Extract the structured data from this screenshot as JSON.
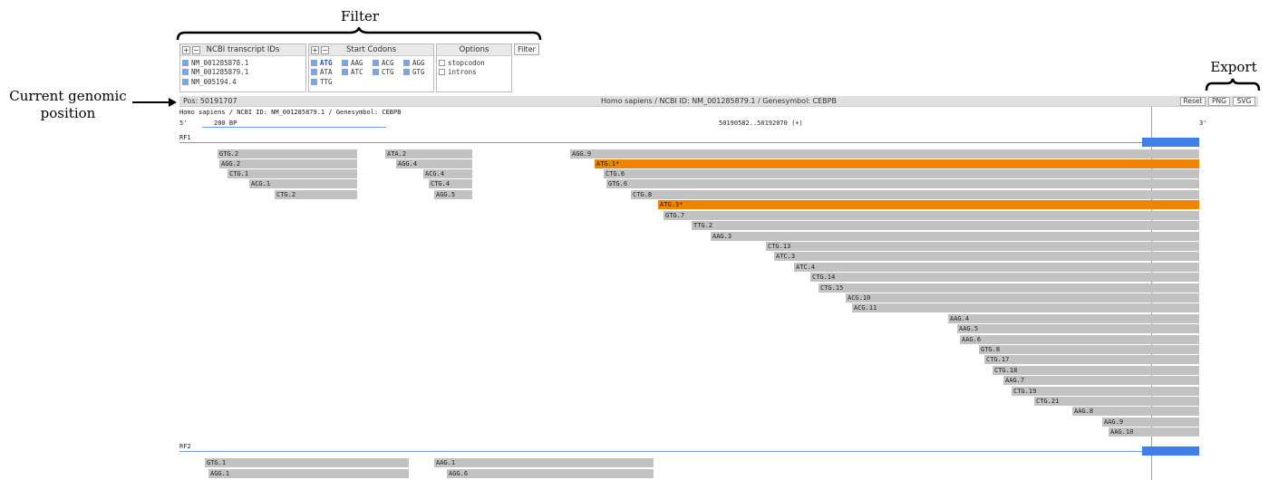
{
  "annotations": {
    "filter": "Filter",
    "export": "Export",
    "position": "Current genomic\nposition"
  },
  "transcripts_panel": {
    "title": "NCBI transcript IDs",
    "plus": "+",
    "minus": "−",
    "items": [
      "NM_001285878.1",
      "NM_001285879.1",
      "NM_005194.4"
    ]
  },
  "codons_panel": {
    "title": "Start Codons",
    "plus": "+",
    "minus": "−",
    "items": [
      "ATG",
      "AAG",
      "ACG",
      "AGG",
      "ATA",
      "ATC",
      "CTG",
      "GTG",
      "TTG"
    ]
  },
  "options_panel": {
    "title": "Options",
    "items": [
      "stopcodon",
      "introns"
    ]
  },
  "filter_button": "Filter",
  "toolbar": {
    "position": "Pos: 50191707",
    "info": "Homo sapiens / NCBI ID: NM_001285879.1 / Genesymbol: CEBPB",
    "reset": "Reset",
    "png": "PNG",
    "svg": "SVG"
  },
  "track": {
    "header": "Homo sapiens / NCBI ID: NM_001285879.1 / Genesymbol: CEBPB",
    "five_prime": "5'",
    "scale": "200 BP",
    "coords": "50190582..50192070 (+)",
    "three_prime": "3'",
    "colors": {
      "bar": "#c2c2c2",
      "highlight": "#ef8400",
      "exon": "#3f7fe8",
      "frame_line": "#6b9be6"
    }
  },
  "frames": [
    {
      "label": "RF1",
      "orfs": [
        {
          "label": "GTG.2"
        },
        {
          "label": "AGG.2"
        },
        {
          "label": "CTG.1"
        },
        {
          "label": "ACG.1"
        },
        {
          "label": "CTG.2"
        },
        {
          "label": "ATA.2"
        },
        {
          "label": "AGG.4"
        },
        {
          "label": "ACG.4"
        },
        {
          "label": "CTG.4"
        },
        {
          "label": "AGG.5"
        },
        {
          "label": "AGG.9"
        },
        {
          "label": "ATG.1*",
          "highlight": true
        },
        {
          "label": "CTG.6"
        },
        {
          "label": "GTG.6"
        },
        {
          "label": "CTG.8"
        },
        {
          "label": "ATG.3*",
          "highlight": true
        },
        {
          "label": "GTG.7"
        },
        {
          "label": "TTG.2"
        },
        {
          "label": "AAG.3"
        },
        {
          "label": "CTG.13"
        },
        {
          "label": "ATC.3"
        },
        {
          "label": "ATC.4"
        },
        {
          "label": "CTG.14"
        },
        {
          "label": "CTG.15"
        },
        {
          "label": "ACG.10"
        },
        {
          "label": "ACG.11"
        },
        {
          "label": "AAG.4"
        },
        {
          "label": "AAG.5"
        },
        {
          "label": "AAG.6"
        },
        {
          "label": "GTG.8"
        },
        {
          "label": "CTG.17"
        },
        {
          "label": "CTG.18"
        },
        {
          "label": "AAG.7"
        },
        {
          "label": "CTG.19"
        },
        {
          "label": "CTG.21"
        },
        {
          "label": "AAG.8"
        },
        {
          "label": "AAG.9"
        },
        {
          "label": "AAG.10"
        }
      ]
    },
    {
      "label": "RF2",
      "orfs": [
        {
          "label": "GTG.1"
        },
        {
          "label": "AAG.1"
        },
        {
          "label": "AGG.1"
        },
        {
          "label": "AGG.6"
        }
      ]
    }
  ]
}
